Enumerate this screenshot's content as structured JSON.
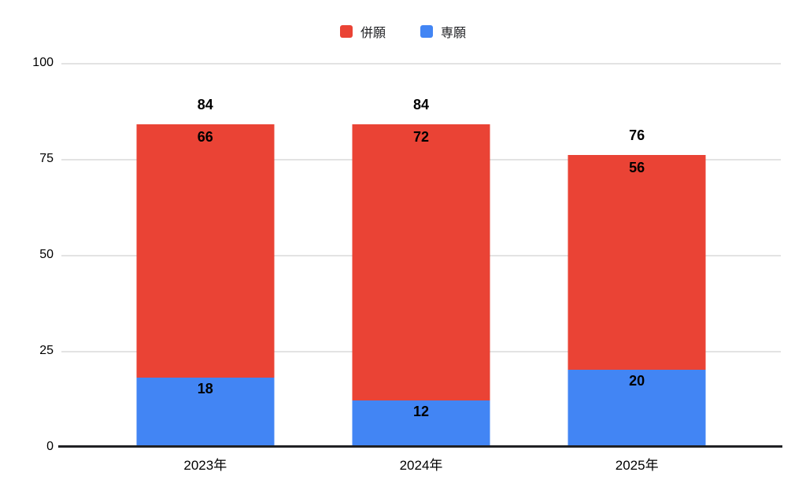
{
  "chart_data": {
    "type": "bar",
    "stacked": true,
    "categories": [
      "2023年",
      "2024年",
      "2025年"
    ],
    "series": [
      {
        "name": "併願",
        "color": "#EA4335",
        "values": [
          66,
          72,
          56
        ]
      },
      {
        "name": "専願",
        "color": "#4285F4",
        "values": [
          18,
          12,
          20
        ]
      }
    ],
    "stack_order_bottom_to_top": [
      "専願",
      "併願"
    ],
    "totals": [
      84,
      84,
      76
    ],
    "title": "",
    "xlabel": "",
    "ylabel": "",
    "ylim": [
      0,
      100
    ],
    "yticks": [
      0,
      25,
      50,
      75,
      100
    ],
    "grid": true,
    "legend_position": "top",
    "colors": {
      "heigan_red": "#EA4335",
      "sengan_blue": "#4285F4",
      "gridline": "#e3e3e3",
      "axis_line": "#202124",
      "text": "#000000"
    }
  }
}
